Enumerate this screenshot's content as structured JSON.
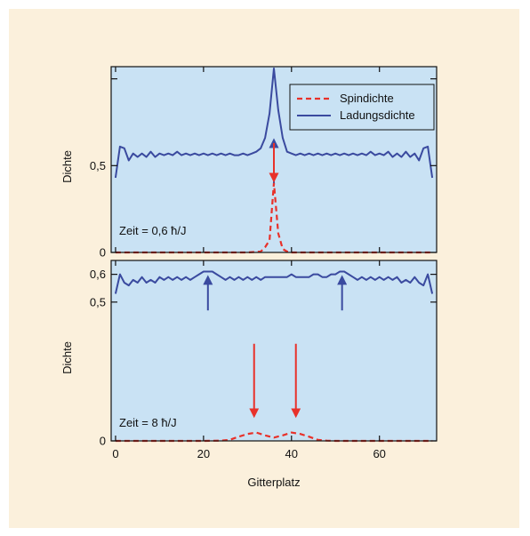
{
  "colors": {
    "background": "#fbf0dc",
    "plot_area": "#c9e2f4",
    "spin": "#e8312a",
    "charge": "#3a4a9f",
    "arrow_blue": "#3a4a9f",
    "arrow_red": "#e8312a"
  },
  "chart_data": [
    {
      "type": "line",
      "panel": "top",
      "annotation": "Zeit = 0,6 ħ/J",
      "ylabel": "Dichte",
      "xlabel": "",
      "xlim": [
        -1,
        73
      ],
      "ylim": [
        0,
        1.07
      ],
      "yticks": [
        {
          "value": 0,
          "label": "0"
        },
        {
          "value": 0.5,
          "label": "0,5"
        }
      ],
      "legend": {
        "position": "top-right",
        "entries": [
          "Spindichte",
          "Ladungsdichte"
        ]
      },
      "series": [
        {
          "name": "Ladungsdichte",
          "style": "solid",
          "x": [
            0,
            1,
            2,
            3,
            4,
            5,
            6,
            7,
            8,
            9,
            10,
            11,
            12,
            13,
            14,
            15,
            16,
            17,
            18,
            19,
            20,
            21,
            22,
            23,
            24,
            25,
            26,
            27,
            28,
            29,
            30,
            31,
            32,
            33,
            34,
            35,
            36,
            37,
            38,
            39,
            40,
            41,
            42,
            43,
            44,
            45,
            46,
            47,
            48,
            49,
            50,
            51,
            52,
            53,
            54,
            55,
            56,
            57,
            58,
            59,
            60,
            61,
            62,
            63,
            64,
            65,
            66,
            67,
            68,
            69,
            70,
            71,
            72
          ],
          "y": [
            0.43,
            0.61,
            0.6,
            0.53,
            0.57,
            0.55,
            0.57,
            0.55,
            0.58,
            0.55,
            0.57,
            0.56,
            0.57,
            0.56,
            0.58,
            0.56,
            0.57,
            0.56,
            0.57,
            0.56,
            0.57,
            0.56,
            0.57,
            0.56,
            0.57,
            0.56,
            0.57,
            0.56,
            0.56,
            0.57,
            0.56,
            0.57,
            0.58,
            0.6,
            0.66,
            0.8,
            1.06,
            0.82,
            0.66,
            0.58,
            0.57,
            0.56,
            0.57,
            0.56,
            0.57,
            0.56,
            0.57,
            0.56,
            0.57,
            0.56,
            0.57,
            0.56,
            0.57,
            0.56,
            0.57,
            0.56,
            0.57,
            0.56,
            0.58,
            0.56,
            0.57,
            0.56,
            0.58,
            0.55,
            0.57,
            0.55,
            0.58,
            0.55,
            0.57,
            0.53,
            0.6,
            0.61,
            0.43
          ]
        },
        {
          "name": "Spindichte",
          "style": "dashed",
          "x": [
            0,
            10,
            20,
            30,
            33,
            34,
            35,
            36,
            37,
            38,
            39,
            40,
            50,
            60,
            72
          ],
          "y": [
            0,
            0,
            0,
            0,
            0.005,
            0.03,
            0.07,
            0.4,
            0.11,
            0.02,
            0.005,
            0,
            0,
            0,
            0
          ]
        }
      ],
      "arrows": [
        {
          "color": "blue",
          "direction": "up",
          "x": 36,
          "y_from": 0.4,
          "y_to": 0.63
        },
        {
          "color": "red",
          "direction": "down",
          "x": 36,
          "y_from": 0.63,
          "y_to": 0.43
        }
      ]
    },
    {
      "type": "line",
      "panel": "bottom",
      "annotation": "Zeit = 8 ħ/J",
      "ylabel": "Dichte",
      "xlabel": "Gitterplatz",
      "xlim": [
        -1,
        73
      ],
      "ylim": [
        0,
        0.65
      ],
      "yticks": [
        {
          "value": 0,
          "label": "0"
        },
        {
          "value": 0.5,
          "label": "0,5"
        },
        {
          "value": 0.6,
          "label": "0,6"
        }
      ],
      "xticks": [
        {
          "value": 0,
          "label": "0"
        },
        {
          "value": 20,
          "label": "20"
        },
        {
          "value": 40,
          "label": "40"
        },
        {
          "value": 60,
          "label": "60"
        }
      ],
      "series": [
        {
          "name": "Ladungsdichte",
          "style": "solid",
          "x": [
            0,
            1,
            2,
            3,
            4,
            5,
            6,
            7,
            8,
            9,
            10,
            11,
            12,
            13,
            14,
            15,
            16,
            17,
            18,
            19,
            20,
            21,
            22,
            23,
            24,
            25,
            26,
            27,
            28,
            29,
            30,
            31,
            32,
            33,
            34,
            35,
            36,
            37,
            38,
            39,
            40,
            41,
            42,
            43,
            44,
            45,
            46,
            47,
            48,
            49,
            50,
            51,
            52,
            53,
            54,
            55,
            56,
            57,
            58,
            59,
            60,
            61,
            62,
            63,
            64,
            65,
            66,
            67,
            68,
            69,
            70,
            71,
            72
          ],
          "y": [
            0.53,
            0.6,
            0.57,
            0.56,
            0.58,
            0.57,
            0.59,
            0.57,
            0.58,
            0.57,
            0.59,
            0.58,
            0.59,
            0.58,
            0.59,
            0.58,
            0.59,
            0.58,
            0.59,
            0.6,
            0.61,
            0.61,
            0.61,
            0.6,
            0.59,
            0.58,
            0.59,
            0.58,
            0.59,
            0.58,
            0.59,
            0.58,
            0.59,
            0.58,
            0.59,
            0.59,
            0.59,
            0.59,
            0.59,
            0.59,
            0.6,
            0.59,
            0.59,
            0.59,
            0.59,
            0.6,
            0.6,
            0.59,
            0.59,
            0.6,
            0.6,
            0.61,
            0.61,
            0.6,
            0.59,
            0.58,
            0.59,
            0.58,
            0.59,
            0.58,
            0.59,
            0.58,
            0.59,
            0.58,
            0.59,
            0.57,
            0.58,
            0.57,
            0.59,
            0.57,
            0.56,
            0.6,
            0.53
          ]
        },
        {
          "name": "Spindichte",
          "style": "dashed",
          "x": [
            0,
            10,
            20,
            24,
            26,
            28,
            30,
            32,
            34,
            36,
            38,
            40,
            42,
            44,
            46,
            48,
            50,
            60,
            72
          ],
          "y": [
            0,
            0,
            0,
            0.001,
            0.004,
            0.015,
            0.025,
            0.03,
            0.02,
            0.012,
            0.02,
            0.03,
            0.025,
            0.015,
            0.004,
            0.001,
            0,
            0,
            0
          ]
        }
      ],
      "arrows": [
        {
          "color": "blue",
          "direction": "up",
          "x": 21,
          "y_from": 0.47,
          "y_to": 0.58
        },
        {
          "color": "blue",
          "direction": "up",
          "x": 51.5,
          "y_from": 0.47,
          "y_to": 0.58
        },
        {
          "color": "red",
          "direction": "down",
          "x": 31.5,
          "y_from": 0.35,
          "y_to": 0.1
        },
        {
          "color": "red",
          "direction": "down",
          "x": 41,
          "y_from": 0.35,
          "y_to": 0.1
        }
      ]
    }
  ]
}
